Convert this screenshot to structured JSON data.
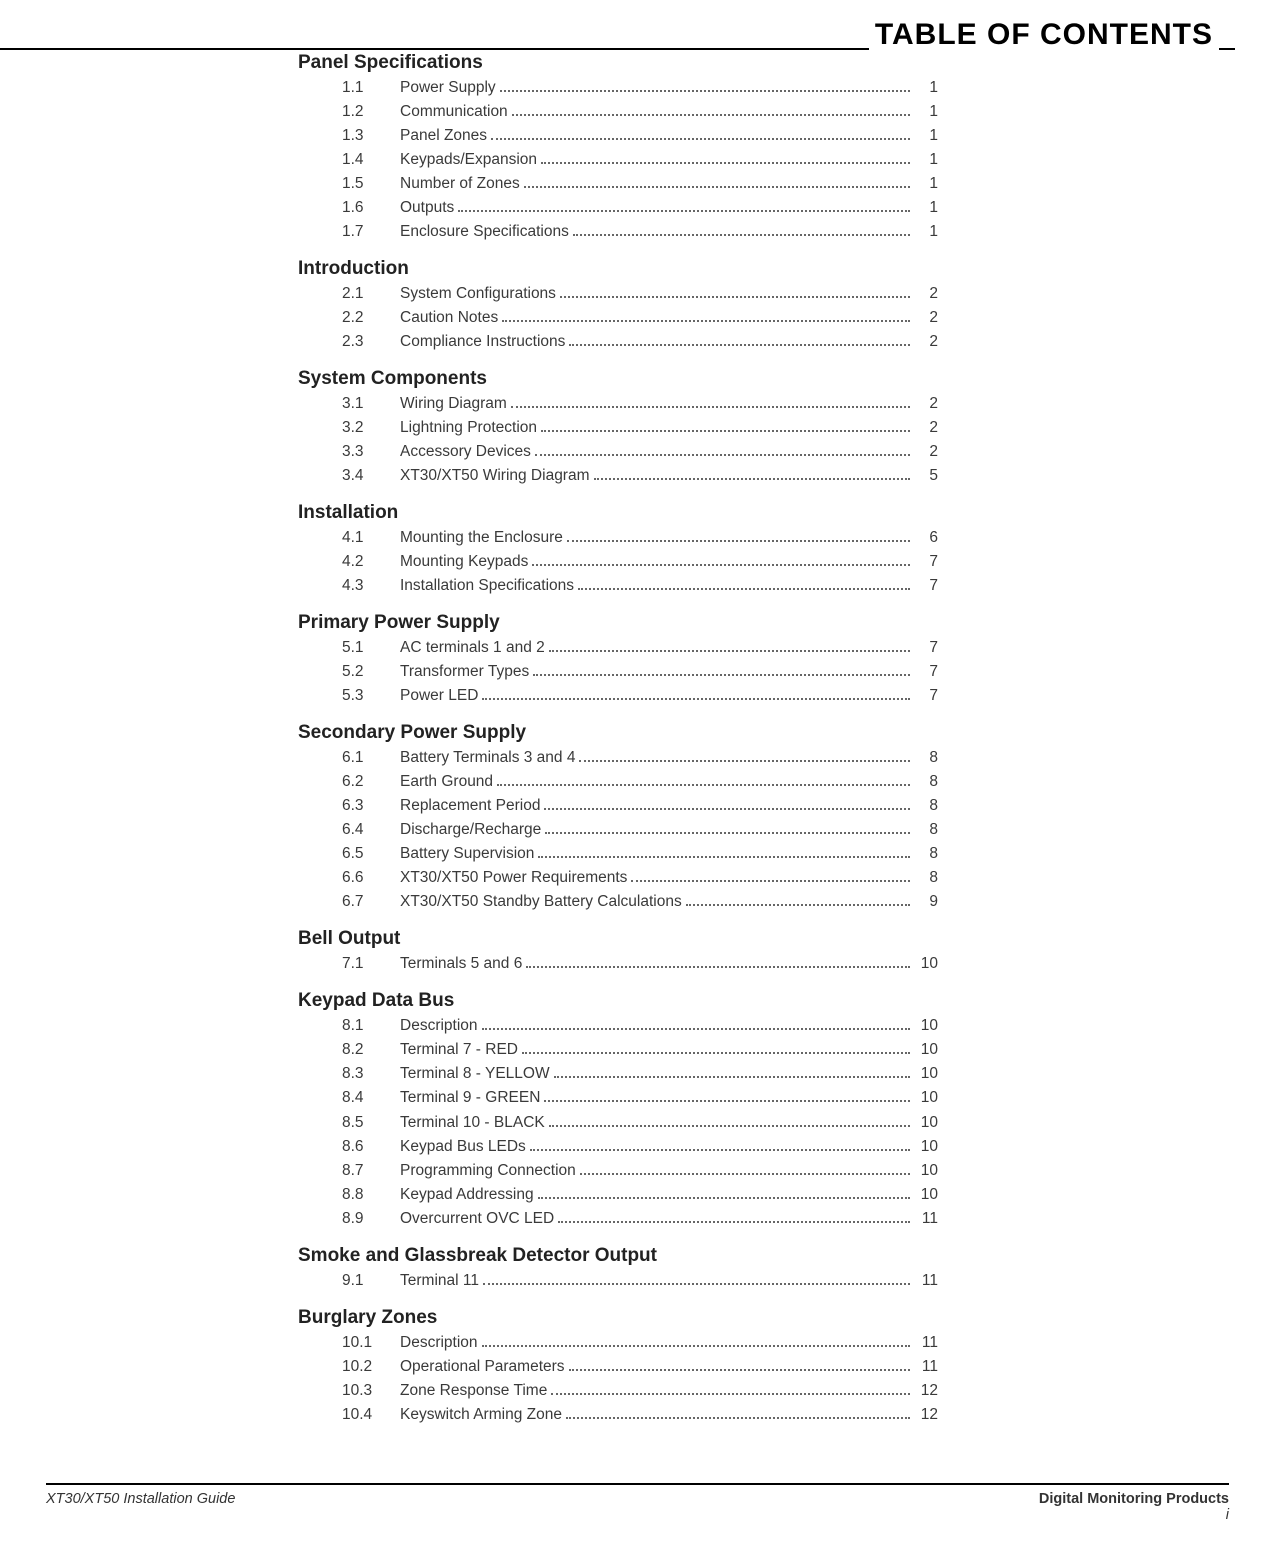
{
  "header_title": "TABLE OF CONTENTS",
  "footer_left": "XT30/XT50 Installation Guide",
  "footer_right": "Digital Monitoring Products",
  "footer_pagenum": "i",
  "sections": [
    {
      "title": "Panel Specifications",
      "items": [
        {
          "num": "1.1",
          "label": "Power Supply",
          "page": "1"
        },
        {
          "num": "1.2",
          "label": "Communication",
          "page": "1"
        },
        {
          "num": "1.3",
          "label": "Panel Zones",
          "page": "1"
        },
        {
          "num": "1.4",
          "label": "Keypads/Expansion",
          "page": "1"
        },
        {
          "num": "1.5",
          "label": "Number of Zones",
          "page": "1"
        },
        {
          "num": "1.6",
          "label": "Outputs",
          "page": "1"
        },
        {
          "num": "1.7",
          "label": "Enclosure Specifications",
          "page": "1"
        }
      ]
    },
    {
      "title": "Introduction",
      "items": [
        {
          "num": "2.1",
          "label": "System Configurations",
          "page": "2"
        },
        {
          "num": "2.2",
          "label": "Caution Notes",
          "page": "2"
        },
        {
          "num": "2.3",
          "label": "Compliance Instructions",
          "page": "2"
        }
      ]
    },
    {
      "title": "System Components",
      "items": [
        {
          "num": "3.1",
          "label": "Wiring Diagram",
          "page": "2"
        },
        {
          "num": "3.2",
          "label": "Lightning Protection",
          "page": "2"
        },
        {
          "num": "3.3",
          "label": "Accessory Devices",
          "page": "2"
        },
        {
          "num": "3.4",
          "label": "XT30/XT50 Wiring Diagram",
          "page": "5"
        }
      ]
    },
    {
      "title": "Installation",
      "items": [
        {
          "num": "4.1",
          "label": "Mounting the Enclosure",
          "page": "6"
        },
        {
          "num": "4.2",
          "label": "Mounting Keypads",
          "page": "7"
        },
        {
          "num": "4.3",
          "label": "Installation Specifications",
          "page": "7"
        }
      ]
    },
    {
      "title": "Primary Power Supply",
      "items": [
        {
          "num": "5.1",
          "label": "AC terminals 1 and 2",
          "page": "7"
        },
        {
          "num": "5.2",
          "label": "Transformer Types",
          "page": "7"
        },
        {
          "num": "5.3",
          "label": "Power LED",
          "page": "7"
        }
      ]
    },
    {
      "title": "Secondary Power Supply",
      "items": [
        {
          "num": "6.1",
          "label": "Battery Terminals 3 and 4",
          "page": "8"
        },
        {
          "num": "6.2",
          "label": "Earth Ground",
          "page": "8"
        },
        {
          "num": "6.3",
          "label": "Replacement Period",
          "page": "8"
        },
        {
          "num": "6.4",
          "label": "Discharge/Recharge",
          "page": "8"
        },
        {
          "num": "6.5",
          "label": "Battery Supervision",
          "page": "8"
        },
        {
          "num": "6.6",
          "label": "XT30/XT50 Power Requirements",
          "page": "8"
        },
        {
          "num": "6.7",
          "label": "XT30/XT50 Standby Battery Calculations",
          "page": "9"
        }
      ]
    },
    {
      "title": "Bell Output",
      "items": [
        {
          "num": "7.1",
          "label": "Terminals 5 and 6",
          "page": "10"
        }
      ]
    },
    {
      "title": "Keypad Data Bus",
      "items": [
        {
          "num": "8.1",
          "label": "Description",
          "page": "10"
        },
        {
          "num": "8.2",
          "label": "Terminal 7 - RED",
          "page": "10"
        },
        {
          "num": "8.3",
          "label": "Terminal 8 - YELLOW",
          "page": "10"
        },
        {
          "num": "8.4",
          "label": "Terminal 9 - GREEN",
          "page": "10"
        },
        {
          "num": "8.5",
          "label": "Terminal 10 - BLACK",
          "page": "10"
        },
        {
          "num": "8.6",
          "label": "Keypad Bus LEDs",
          "page": "10"
        },
        {
          "num": "8.7",
          "label": "Programming Connection",
          "page": "10"
        },
        {
          "num": "8.8",
          "label": "Keypad Addressing",
          "page": "10"
        },
        {
          "num": "8.9",
          "label": "Overcurrent OVC LED",
          "page": "11"
        }
      ]
    },
    {
      "title": "Smoke and Glassbreak Detector Output",
      "items": [
        {
          "num": "9.1",
          "label": "Terminal 11",
          "page": "11"
        }
      ]
    },
    {
      "title": "Burglary Zones",
      "items": [
        {
          "num": "10.1",
          "label": "Description",
          "page": "11"
        },
        {
          "num": "10.2",
          "label": "Operational Parameters",
          "page": "11"
        },
        {
          "num": "10.3",
          "label": "Zone Response Time",
          "page": "12"
        },
        {
          "num": "10.4",
          "label": "Keyswitch Arming Zone",
          "page": "12"
        }
      ]
    }
  ]
}
